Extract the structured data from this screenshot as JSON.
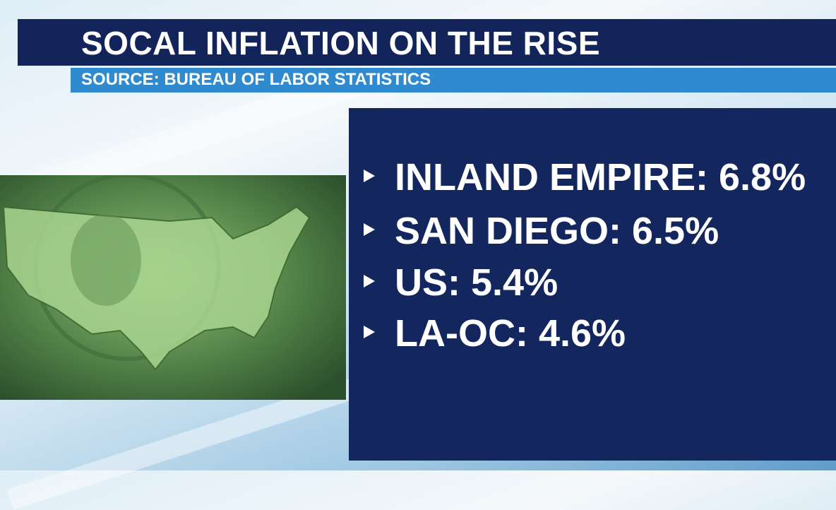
{
  "header": {
    "title": "SOCAL INFLATION ON THE RISE",
    "source": "SOURCE: BUREAU OF LABOR STATISTICS"
  },
  "items": [
    "INLAND EMPIRE: 6.8%",
    "SAN DIEGO: 6.5%",
    "US: 5.4%",
    "LA-OC: 4.6%"
  ]
}
